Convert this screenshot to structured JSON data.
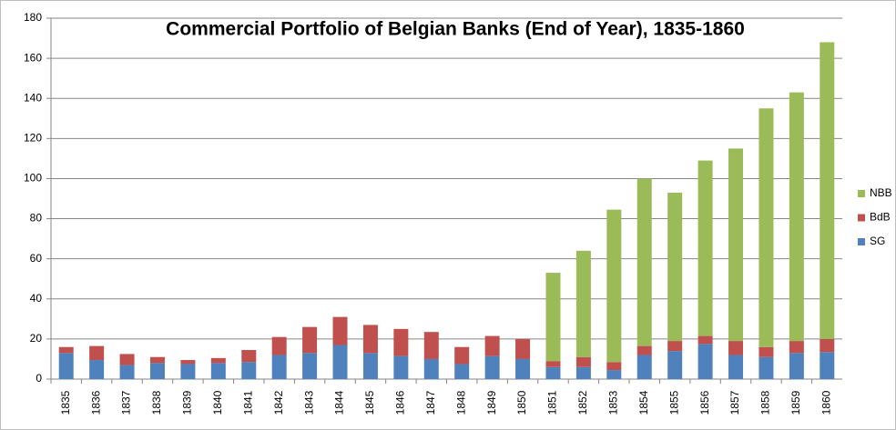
{
  "chart_data": {
    "type": "stacked_bar",
    "title": "Commercial Portfolio of Belgian Banks (End of Year), 1835-1860",
    "categories": [
      "1835",
      "1836",
      "1837",
      "1838",
      "1839",
      "1840",
      "1841",
      "1842",
      "1843",
      "1844",
      "1845",
      "1846",
      "1847",
      "1848",
      "1849",
      "1850",
      "1851",
      "1852",
      "1853",
      "1854",
      "1855",
      "1856",
      "1857",
      "1858",
      "1859",
      "1860"
    ],
    "series": [
      {
        "name": "SG",
        "color": "#4f81bd",
        "values": [
          13,
          9.5,
          7,
          8,
          7.5,
          8,
          8.5,
          12,
          13,
          17,
          13,
          11.5,
          10,
          7.5,
          11.5,
          10,
          6,
          6,
          4.5,
          12,
          14,
          17.5,
          12,
          11,
          13,
          13.5
        ]
      },
      {
        "name": "BdB",
        "color": "#c0504d",
        "values": [
          3,
          7,
          5.5,
          3,
          2,
          2.5,
          6,
          9,
          13,
          14,
          14,
          13.5,
          13.5,
          8.5,
          10,
          10,
          3,
          5,
          4,
          4.5,
          5,
          4,
          7,
          5,
          6,
          6.5
        ]
      },
      {
        "name": "NBB",
        "color": "#9bbb59",
        "values": [
          null,
          null,
          null,
          null,
          null,
          null,
          null,
          null,
          null,
          null,
          null,
          null,
          null,
          null,
          null,
          null,
          44,
          53,
          76,
          83.5,
          74,
          87.5,
          96,
          119,
          124,
          148
        ]
      }
    ],
    "ylim": [
      0,
      180
    ],
    "yticks": [
      0,
      20,
      40,
      60,
      80,
      100,
      120,
      140,
      160,
      180
    ],
    "grid": true,
    "legend": "right"
  }
}
